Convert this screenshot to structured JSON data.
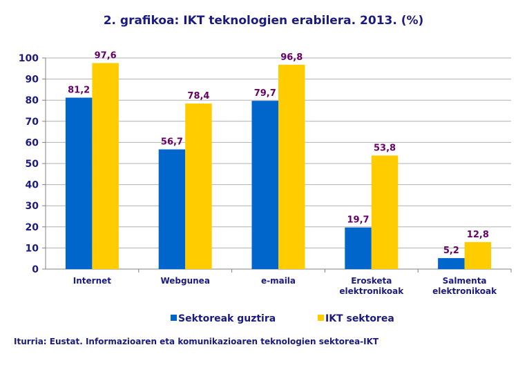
{
  "chart_data": {
    "type": "bar",
    "title": "2. grafikoa: IKT teknologien erabilera. 2013. (%)",
    "categories": [
      [
        "Internet"
      ],
      [
        "Webgunea"
      ],
      [
        "e-maila"
      ],
      [
        "Erosketa",
        "elektronikoak"
      ],
      [
        "Salmenta",
        "elektronikoak"
      ]
    ],
    "series": [
      {
        "name": "Sektoreak guztira",
        "color": "#0066CC",
        "values": [
          81.2,
          56.7,
          79.7,
          19.7,
          5.2
        ],
        "labels": [
          "81,2",
          "56,7",
          "79,7",
          "19,7",
          "5,2"
        ]
      },
      {
        "name": "IKT sektorea",
        "color": "#FFCC00",
        "values": [
          97.6,
          78.4,
          96.8,
          53.8,
          12.8
        ],
        "labels": [
          "97,6",
          "78,4",
          "96,8",
          "53,8",
          "12,8"
        ]
      }
    ],
    "ylim": [
      0,
      100
    ],
    "yticks": [
      0,
      10,
      20,
      30,
      40,
      50,
      60,
      70,
      80,
      90,
      100
    ],
    "grid": true,
    "legend": "bottom",
    "xlabel": "",
    "ylabel": "",
    "label_color": "#660066",
    "axis_text_color": "#1a1a80"
  },
  "source": "Iturria: Eustat. Informazioaren eta komunikazioaren teknologien sektorea-IKT"
}
